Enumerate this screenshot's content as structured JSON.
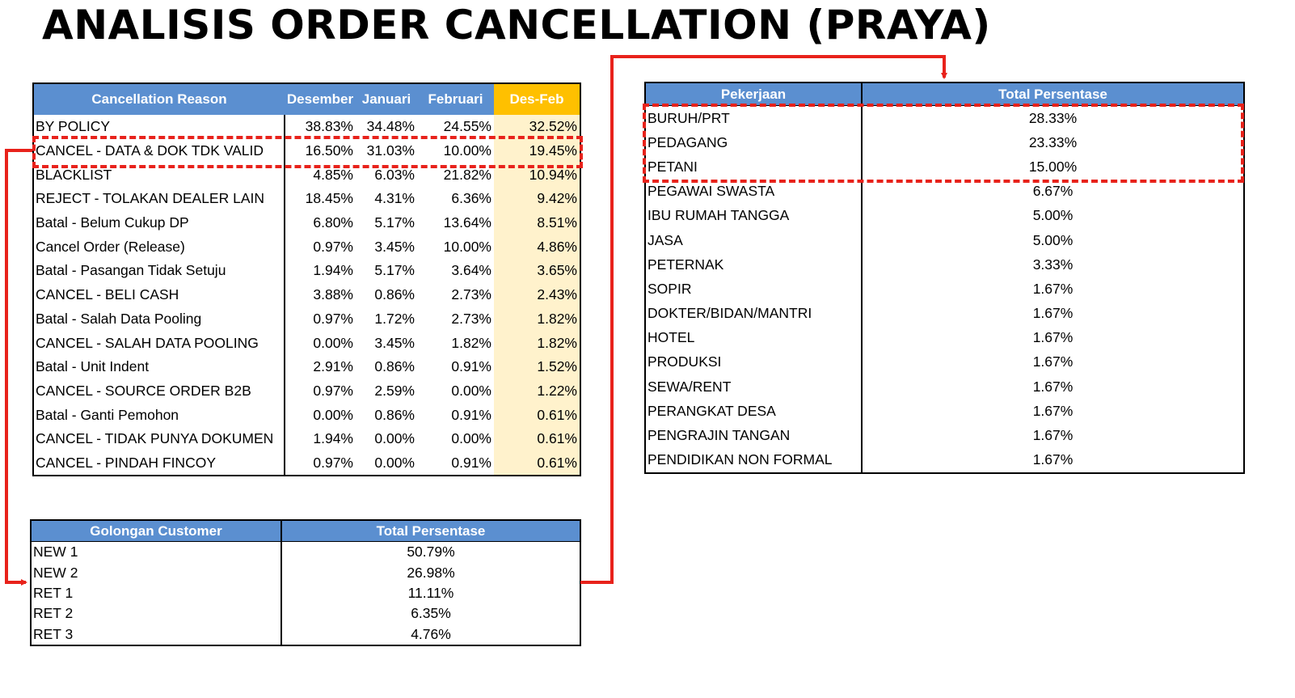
{
  "title": "ANALISIS ORDER CANCELLATION (PRAYA)",
  "accent_color": "#e8221b",
  "header_color": "#5b8fd0",
  "highlight_header_color": "#ffc000",
  "highlight_cell_color": "#fff2cc",
  "cancel_table": {
    "headers": [
      "Cancellation Reason",
      "Desember",
      "Januari",
      "Februari",
      "Des-Feb"
    ],
    "rows": [
      [
        "BY POLICY",
        "38.83%",
        "34.48%",
        "24.55%",
        "32.52%"
      ],
      [
        "CANCEL - DATA & DOK TDK VALID",
        "16.50%",
        "31.03%",
        "10.00%",
        "19.45%"
      ],
      [
        "BLACKLIST",
        "4.85%",
        "6.03%",
        "21.82%",
        "10.94%"
      ],
      [
        "REJECT - TOLAKAN DEALER LAIN",
        "18.45%",
        "4.31%",
        "6.36%",
        "9.42%"
      ],
      [
        "Batal - Belum Cukup DP",
        "6.80%",
        "5.17%",
        "13.64%",
        "8.51%"
      ],
      [
        "Cancel Order (Release)",
        "0.97%",
        "3.45%",
        "10.00%",
        "4.86%"
      ],
      [
        "Batal - Pasangan Tidak Setuju",
        "1.94%",
        "5.17%",
        "3.64%",
        "3.65%"
      ],
      [
        "CANCEL - BELI CASH",
        "3.88%",
        "0.86%",
        "2.73%",
        "2.43%"
      ],
      [
        "Batal - Salah Data Pooling",
        "0.97%",
        "1.72%",
        "2.73%",
        "1.82%"
      ],
      [
        "CANCEL - SALAH DATA POOLING",
        "0.00%",
        "3.45%",
        "1.82%",
        "1.82%"
      ],
      [
        "Batal - Unit Indent",
        "2.91%",
        "0.86%",
        "0.91%",
        "1.52%"
      ],
      [
        "CANCEL - SOURCE ORDER B2B",
        "0.97%",
        "2.59%",
        "0.00%",
        "1.22%"
      ],
      [
        "Batal - Ganti Pemohon",
        "0.00%",
        "0.86%",
        "0.91%",
        "0.61%"
      ],
      [
        "CANCEL - TIDAK PUNYA DOKUMEN",
        "1.94%",
        "0.00%",
        "0.00%",
        "0.61%"
      ],
      [
        "CANCEL - PINDAH FINCOY",
        "0.97%",
        "0.00%",
        "0.91%",
        "0.61%"
      ]
    ]
  },
  "golongan_table": {
    "headers": [
      "Golongan Customer",
      "Total Persentase"
    ],
    "rows": [
      [
        "NEW 1",
        "50.79%"
      ],
      [
        "NEW 2",
        "26.98%"
      ],
      [
        "RET 1",
        "11.11%"
      ],
      [
        "RET 2",
        "6.35%"
      ],
      [
        "RET 3",
        "4.76%"
      ]
    ]
  },
  "pekerjaan_table": {
    "headers": [
      "Pekerjaan",
      "Total Persentase"
    ],
    "rows": [
      [
        "BURUH/PRT",
        "28.33%"
      ],
      [
        "PEDAGANG",
        "23.33%"
      ],
      [
        "PETANI",
        "15.00%"
      ],
      [
        "PEGAWAI SWASTA",
        "6.67%"
      ],
      [
        "IBU RUMAH TANGGA",
        "5.00%"
      ],
      [
        "JASA",
        "5.00%"
      ],
      [
        "PETERNAK",
        "3.33%"
      ],
      [
        "SOPIR",
        "1.67%"
      ],
      [
        "DOKTER/BIDAN/MANTRI",
        "1.67%"
      ],
      [
        "HOTEL",
        "1.67%"
      ],
      [
        "PRODUKSI",
        "1.67%"
      ],
      [
        "SEWA/RENT",
        "1.67%"
      ],
      [
        "PERANGKAT DESA",
        "1.67%"
      ],
      [
        "PENGRAJIN TANGAN",
        "1.67%"
      ],
      [
        "PENDIDIKAN NON FORMAL",
        "1.67%"
      ]
    ]
  }
}
